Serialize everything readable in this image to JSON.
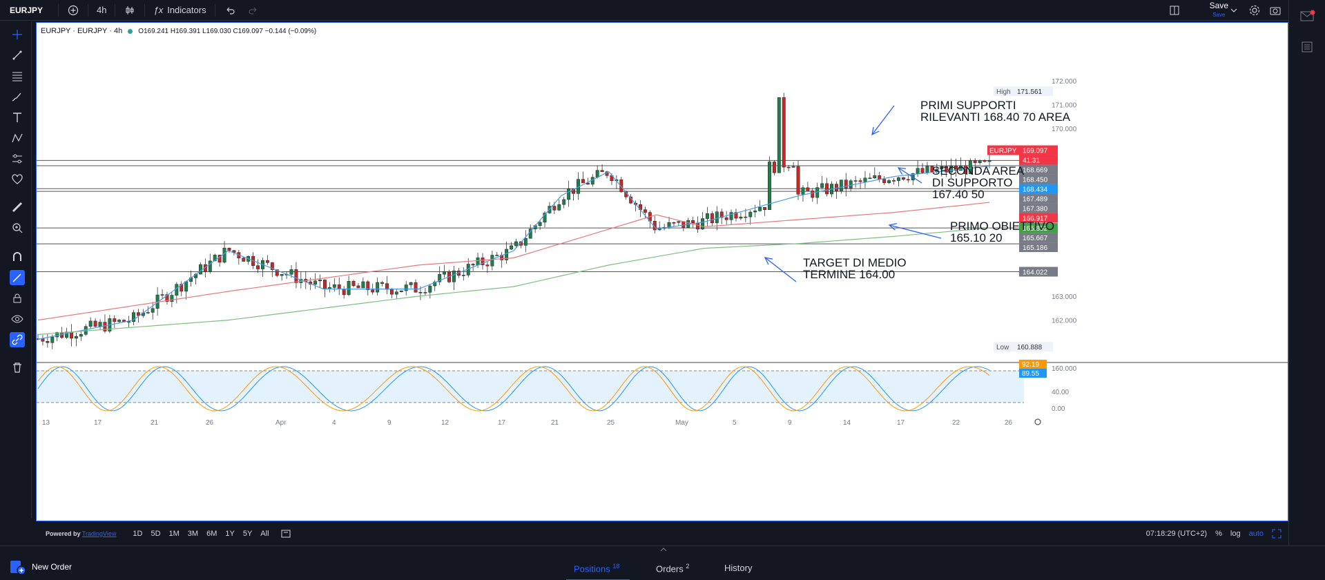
{
  "toolbar": {
    "symbol": "EURJPY",
    "interval": "4h",
    "indicators_label": "Indicators",
    "save_label": "Save",
    "save_sub": "Save"
  },
  "legend": {
    "title": "EURJPY · EURJPY · 4h",
    "ohlc": "O169.241  H169.391  L169.030  C169.097  −0.144 (−0.09%)"
  },
  "price_axis": {
    "ticks": [
      "172.000",
      "171.000",
      "170.000",
      "163.000",
      "162.000",
      "160.000"
    ],
    "high_label": "High",
    "high_value": "171.561",
    "low_label": "Low",
    "low_value": "160.888",
    "tags": [
      {
        "text": "EURJPY",
        "color": "#f23645"
      },
      {
        "text": "169.097",
        "color": "#f23645"
      },
      {
        "text": "41:31",
        "color": "#f23645"
      },
      {
        "text": "168.669",
        "color": "#787b86"
      },
      {
        "text": "168.450",
        "color": "#787b86"
      },
      {
        "text": "168.434",
        "color": "#2196f3"
      },
      {
        "text": "167.489",
        "color": "#787b86"
      },
      {
        "text": "167.380",
        "color": "#787b86"
      },
      {
        "text": "166.917",
        "color": "#f23645"
      },
      {
        "text": "165.852",
        "color": "#43a047"
      },
      {
        "text": "165.667",
        "color": "#787b86"
      },
      {
        "text": "165.186",
        "color": "#787b86"
      },
      {
        "text": "164.022",
        "color": "#787b86"
      }
    ]
  },
  "oscillator": {
    "ticks": [
      "40.00",
      "0.00"
    ],
    "tags": [
      {
        "text": "92.19",
        "color": "#ff9800"
      },
      {
        "text": "89.55",
        "color": "#2196f3"
      }
    ]
  },
  "time_axis": [
    "13",
    "17",
    "21",
    "26",
    "Apr",
    "4",
    "9",
    "12",
    "17",
    "21",
    "25",
    "May",
    "5",
    "9",
    "14",
    "17",
    "22",
    "26"
  ],
  "annotations": [
    {
      "lines": [
        "PRIMI SUPPORTI",
        "RILEVANTI 168.40 70 AREA"
      ]
    },
    {
      "lines": [
        "SECONDA AREA",
        "DI SUPPORTO",
        "167.40 50"
      ]
    },
    {
      "lines": [
        "PRIMO OBIETTIVO",
        "165.10 20"
      ]
    },
    {
      "lines": [
        "TARGET DI MEDIO",
        "TERMINE  164.00"
      ]
    }
  ],
  "bottom_bar": {
    "powered_prefix": "Powered by",
    "powered_link": "TradingView",
    "ranges": [
      "1D",
      "5D",
      "1M",
      "3M",
      "6M",
      "1Y",
      "5Y",
      "All"
    ],
    "clock": "07:18:29 (UTC+2)",
    "percent": "%",
    "log": "log",
    "auto": "auto"
  },
  "footer": {
    "new_order": "New Order",
    "tabs": [
      {
        "label": "Positions",
        "count": "18"
      },
      {
        "label": "Orders",
        "count": "2"
      },
      {
        "label": "History",
        "count": ""
      }
    ]
  },
  "chart_data": {
    "type": "line",
    "title": "EURJPY · EURJPY · 4h",
    "y_range": [
      160.0,
      172.4
    ],
    "horizontal_levels": [
      168.669,
      168.45,
      167.489,
      167.38,
      165.852,
      165.186,
      164.022
    ],
    "series": [
      {
        "name": "",
        "color": "#4c9de8",
        "x": [
          0,
          0.1,
          0.2,
          0.3,
          0.4,
          0.5,
          0.55,
          0.6,
          0.65,
          0.7,
          0.8,
          0.9,
          1.0
        ],
        "values": [
          161.2,
          162.0,
          164.9,
          163.3,
          163.3,
          164.9,
          167.2,
          168.2,
          165.8,
          166.1,
          167.2,
          168.0,
          168.434
        ]
      },
      {
        "name": "",
        "color": "#e8787a",
        "x": [
          0,
          0.2,
          0.4,
          0.5,
          0.6,
          0.65,
          0.7,
          0.8,
          0.9,
          1.0
        ],
        "values": [
          162.0,
          163.2,
          164.3,
          164.6,
          165.8,
          166.4,
          165.9,
          166.2,
          166.5,
          166.917
        ]
      },
      {
        "name": "",
        "color": "#7dbf7d",
        "x": [
          0,
          0.2,
          0.4,
          0.5,
          0.6,
          0.7,
          0.8,
          0.9,
          1.0
        ],
        "values": [
          161.4,
          162.0,
          163.0,
          163.4,
          164.3,
          165.0,
          165.2,
          165.5,
          165.852
        ]
      }
    ]
  }
}
